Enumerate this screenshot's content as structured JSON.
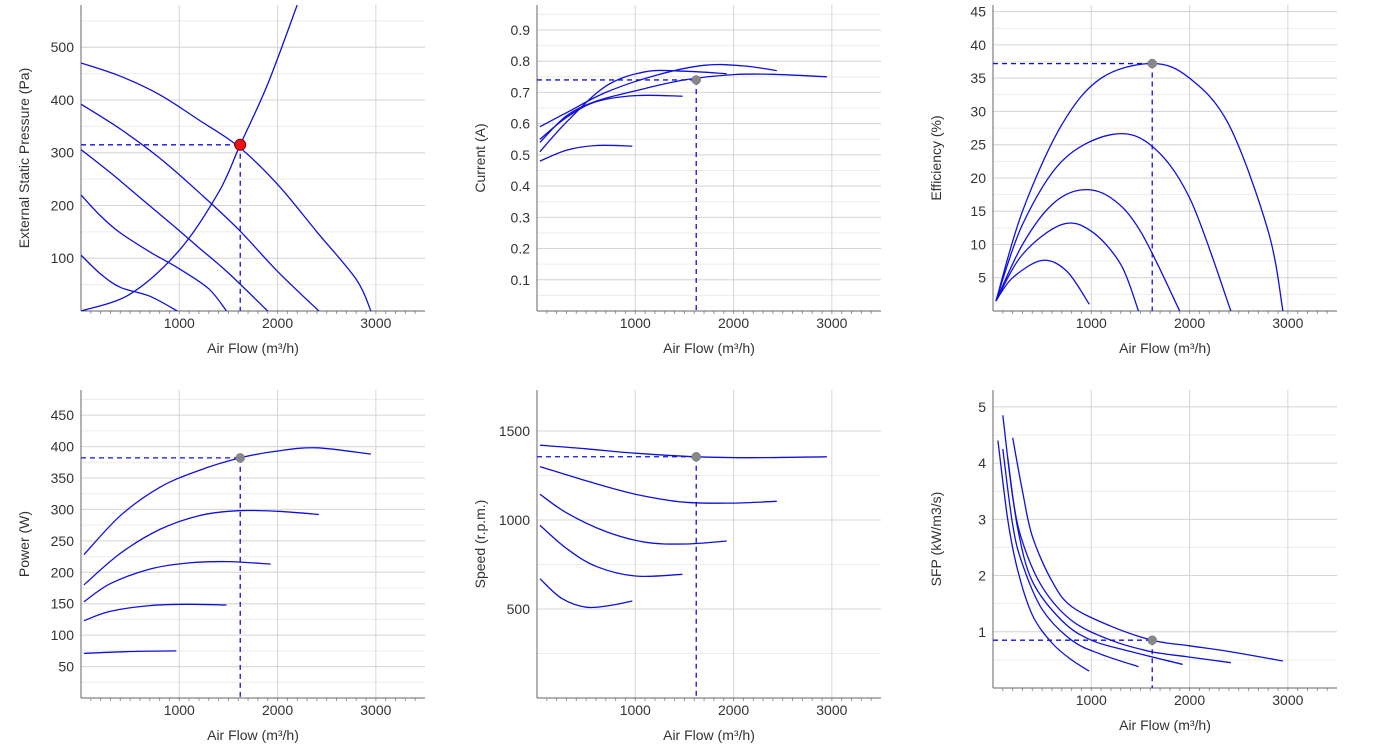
{
  "colors": {
    "curve": "#1010dd",
    "grid": "#d6d6d6",
    "axis": "#666666",
    "op_point_pressure": "#ee1111",
    "op_point": "#888888"
  },
  "chart_data": [
    {
      "id": "pressure",
      "type": "line",
      "xlabel": "Air Flow (m³/h)",
      "ylabel": "External Static Pressure (Pa)",
      "xlim": [
        0,
        3500
      ],
      "ylim": [
        0,
        580
      ],
      "xticks": [
        "1000",
        "2000",
        "3000"
      ],
      "yticks": [
        "100",
        "200",
        "300",
        "400",
        "500"
      ],
      "series": [
        {
          "values": [
            [
              0,
              470
            ],
            [
              400,
              445
            ],
            [
              800,
              410
            ],
            [
              1200,
              362
            ],
            [
              1600,
              312
            ],
            [
              2000,
              240
            ],
            [
              2400,
              150
            ],
            [
              2800,
              60
            ],
            [
              2950,
              0
            ]
          ]
        },
        {
          "values": [
            [
              0,
              392
            ],
            [
              400,
              345
            ],
            [
              800,
              290
            ],
            [
              1200,
              225
            ],
            [
              1600,
              155
            ],
            [
              2000,
              75
            ],
            [
              2420,
              0
            ]
          ]
        },
        {
          "values": [
            [
              0,
              306
            ],
            [
              300,
              262
            ],
            [
              600,
              215
            ],
            [
              900,
              168
            ],
            [
              1200,
              120
            ],
            [
              1500,
              72
            ],
            [
              1900,
              0
            ]
          ]
        },
        {
          "values": [
            [
              0,
              220
            ],
            [
              200,
              180
            ],
            [
              400,
              148
            ],
            [
              700,
              112
            ],
            [
              1000,
              80
            ],
            [
              1300,
              42
            ],
            [
              1480,
              0
            ]
          ]
        },
        {
          "values": [
            [
              0,
              106
            ],
            [
              200,
              70
            ],
            [
              400,
              45
            ],
            [
              700,
              28
            ],
            [
              980,
              0
            ]
          ]
        },
        {
          "values": [
            [
              0,
              0
            ],
            [
              500,
              32
            ],
            [
              1000,
              115
            ],
            [
              1400,
              225
            ],
            [
              1620,
              315
            ],
            [
              1900,
              430
            ],
            [
              2200,
              580
            ]
          ]
        }
      ],
      "operating_point": {
        "x": 1620,
        "y": 315
      }
    },
    {
      "id": "current",
      "type": "line",
      "xlabel": "Air Flow (m³/h)",
      "ylabel": "Current (A)",
      "xlim": [
        0,
        3500
      ],
      "ylim": [
        0,
        0.98
      ],
      "xticks": [
        "1000",
        "2000",
        "3000"
      ],
      "yticks": [
        "0.1",
        "0.2",
        "0.3",
        "0.4",
        "0.5",
        "0.6",
        "0.7",
        "0.8",
        "0.9"
      ],
      "series": [
        {
          "values": [
            [
              30,
              0.54
            ],
            [
              300,
              0.625
            ],
            [
              600,
              0.672
            ],
            [
              1000,
              0.705
            ],
            [
              1500,
              0.74
            ],
            [
              2000,
              0.757
            ],
            [
              2400,
              0.758
            ],
            [
              2950,
              0.75
            ]
          ]
        },
        {
          "values": [
            [
              30,
              0.59
            ],
            [
              300,
              0.635
            ],
            [
              700,
              0.7
            ],
            [
              1200,
              0.754
            ],
            [
              1700,
              0.787
            ],
            [
              2100,
              0.785
            ],
            [
              2440,
              0.77
            ]
          ]
        },
        {
          "values": [
            [
              30,
              0.51
            ],
            [
              300,
              0.605
            ],
            [
              700,
              0.72
            ],
            [
              1100,
              0.766
            ],
            [
              1500,
              0.768
            ],
            [
              1930,
              0.76
            ]
          ]
        },
        {
          "values": [
            [
              30,
              0.55
            ],
            [
              300,
              0.62
            ],
            [
              600,
              0.67
            ],
            [
              1000,
              0.69
            ],
            [
              1480,
              0.688
            ]
          ]
        },
        {
          "values": [
            [
              30,
              0.48
            ],
            [
              300,
              0.515
            ],
            [
              600,
              0.53
            ],
            [
              970,
              0.528
            ]
          ]
        }
      ],
      "operating_point": {
        "x": 1620,
        "y": 0.74
      }
    },
    {
      "id": "efficiency",
      "type": "line",
      "xlabel": "Air Flow (m³/h)",
      "ylabel": "Efficiency (%)",
      "xlim": [
        0,
        3500
      ],
      "ylim": [
        0,
        46
      ],
      "xticks": [
        "1000",
        "2000",
        "3000"
      ],
      "yticks": [
        "5",
        "10",
        "15",
        "20",
        "25",
        "30",
        "35",
        "40",
        "45"
      ],
      "series": [
        {
          "values": [
            [
              30,
              1.5
            ],
            [
              300,
              15
            ],
            [
              700,
              28
            ],
            [
              1100,
              35
            ],
            [
              1620,
              37.2
            ],
            [
              2000,
              35
            ],
            [
              2400,
              28
            ],
            [
              2800,
              12
            ],
            [
              2950,
              0
            ]
          ]
        },
        {
          "values": [
            [
              30,
              1.5
            ],
            [
              300,
              13
            ],
            [
              700,
              22.5
            ],
            [
              1200,
              26.5
            ],
            [
              1600,
              25
            ],
            [
              2000,
              17
            ],
            [
              2420,
              0
            ]
          ]
        },
        {
          "values": [
            [
              30,
              1.5
            ],
            [
              300,
              10
            ],
            [
              600,
              16
            ],
            [
              900,
              18.2
            ],
            [
              1200,
              17
            ],
            [
              1500,
              12
            ],
            [
              1900,
              0
            ]
          ]
        },
        {
          "values": [
            [
              30,
              1.5
            ],
            [
              300,
              8.5
            ],
            [
              700,
              13
            ],
            [
              1000,
              12
            ],
            [
              1300,
              7
            ],
            [
              1480,
              0
            ]
          ]
        },
        {
          "values": [
            [
              30,
              1.5
            ],
            [
              200,
              5
            ],
            [
              500,
              7.6
            ],
            [
              750,
              6
            ],
            [
              980,
              1
            ]
          ]
        }
      ],
      "operating_point": {
        "x": 1620,
        "y": 37.2
      }
    },
    {
      "id": "power",
      "type": "line",
      "xlabel": "Air Flow (m³/h)",
      "ylabel": "Power (W)",
      "xlim": [
        0,
        3500
      ],
      "ylim": [
        0,
        490
      ],
      "xticks": [
        "1000",
        "2000",
        "3000"
      ],
      "yticks": [
        "50",
        "100",
        "150",
        "200",
        "250",
        "300",
        "350",
        "400",
        "450"
      ],
      "series": [
        {
          "values": [
            [
              30,
              228
            ],
            [
              400,
              290
            ],
            [
              800,
              335
            ],
            [
              1200,
              362
            ],
            [
              1620,
              382
            ],
            [
              2000,
              393
            ],
            [
              2400,
              398
            ],
            [
              2950,
              388
            ]
          ]
        },
        {
          "values": [
            [
              30,
              180
            ],
            [
              400,
              230
            ],
            [
              800,
              268
            ],
            [
              1200,
              290
            ],
            [
              1600,
              298
            ],
            [
              2000,
              297
            ],
            [
              2420,
              292
            ]
          ]
        },
        {
          "values": [
            [
              30,
              153
            ],
            [
              300,
              182
            ],
            [
              700,
              205
            ],
            [
              1100,
              215
            ],
            [
              1500,
              217
            ],
            [
              1930,
              213
            ]
          ]
        },
        {
          "values": [
            [
              30,
              123
            ],
            [
              300,
              138
            ],
            [
              700,
              147
            ],
            [
              1100,
              149
            ],
            [
              1480,
              148
            ]
          ]
        },
        {
          "values": [
            [
              30,
              71
            ],
            [
              500,
              74
            ],
            [
              970,
              75
            ]
          ]
        }
      ],
      "operating_point": {
        "x": 1620,
        "y": 382
      }
    },
    {
      "id": "speed",
      "type": "line",
      "xlabel": "Air Flow (m³/h)",
      "ylabel": "Speed (r.p.m.)",
      "xlim": [
        0,
        3500
      ],
      "ylim": [
        0,
        1730
      ],
      "xticks": [
        "1000",
        "2000",
        "3000"
      ],
      "yticks": [
        "500",
        "1000",
        "1500"
      ],
      "series": [
        {
          "values": [
            [
              30,
              1420
            ],
            [
              500,
              1400
            ],
            [
              1000,
              1375
            ],
            [
              1620,
              1355
            ],
            [
              2200,
              1350
            ],
            [
              2950,
              1355
            ]
          ]
        },
        {
          "values": [
            [
              30,
              1300
            ],
            [
              500,
              1220
            ],
            [
              1000,
              1145
            ],
            [
              1500,
              1100
            ],
            [
              2000,
              1095
            ],
            [
              2440,
              1105
            ]
          ]
        },
        {
          "values": [
            [
              30,
              1145
            ],
            [
              300,
              1040
            ],
            [
              700,
              935
            ],
            [
              1100,
              875
            ],
            [
              1500,
              865
            ],
            [
              1930,
              882
            ]
          ]
        },
        {
          "values": [
            [
              30,
              970
            ],
            [
              300,
              840
            ],
            [
              600,
              740
            ],
            [
              1000,
              685
            ],
            [
              1480,
              695
            ]
          ]
        },
        {
          "values": [
            [
              30,
              670
            ],
            [
              250,
              560
            ],
            [
              500,
              510
            ],
            [
              750,
              520
            ],
            [
              970,
              545
            ]
          ]
        }
      ],
      "operating_point": {
        "x": 1620,
        "y": 1355
      }
    },
    {
      "id": "sfp",
      "type": "line",
      "xlabel": "Air Flow (m³/h)",
      "ylabel": "SFP (kW/m3/s)",
      "xlim": [
        0,
        3500
      ],
      "ylim": [
        0,
        5.3
      ],
      "xticks": [
        "1000",
        "2000",
        "3000"
      ],
      "yticks": [
        "1",
        "2",
        "3",
        "4",
        "5"
      ],
      "series": [
        {
          "values": [
            [
              200,
              4.45
            ],
            [
              300,
              3.5
            ],
            [
              400,
              2.7
            ],
            [
              600,
              1.9
            ],
            [
              800,
              1.45
            ],
            [
              1200,
              1.1
            ],
            [
              1620,
              0.85
            ],
            [
              2000,
              0.75
            ],
            [
              2400,
              0.65
            ],
            [
              2950,
              0.48
            ]
          ]
        },
        {
          "values": [
            [
              100,
              4.85
            ],
            [
              200,
              3.4
            ],
            [
              300,
              2.6
            ],
            [
              500,
              1.8
            ],
            [
              800,
              1.2
            ],
            [
              1200,
              0.85
            ],
            [
              1600,
              0.65
            ],
            [
              2000,
              0.55
            ],
            [
              2420,
              0.45
            ]
          ]
        },
        {
          "values": [
            [
              150,
              4.1
            ],
            [
              250,
              2.85
            ],
            [
              400,
              1.9
            ],
            [
              700,
              1.2
            ],
            [
              1000,
              0.85
            ],
            [
              1400,
              0.65
            ],
            [
              1930,
              0.42
            ]
          ]
        },
        {
          "values": [
            [
              100,
              4.25
            ],
            [
              200,
              2.9
            ],
            [
              300,
              2.2
            ],
            [
              500,
              1.4
            ],
            [
              800,
              0.85
            ],
            [
              1100,
              0.6
            ],
            [
              1480,
              0.38
            ]
          ]
        },
        {
          "values": [
            [
              50,
              4.4
            ],
            [
              150,
              3.0
            ],
            [
              250,
              2.1
            ],
            [
              400,
              1.3
            ],
            [
              600,
              0.8
            ],
            [
              800,
              0.5
            ],
            [
              980,
              0.3
            ]
          ]
        }
      ],
      "operating_point": {
        "x": 1620,
        "y": 0.85
      }
    }
  ]
}
